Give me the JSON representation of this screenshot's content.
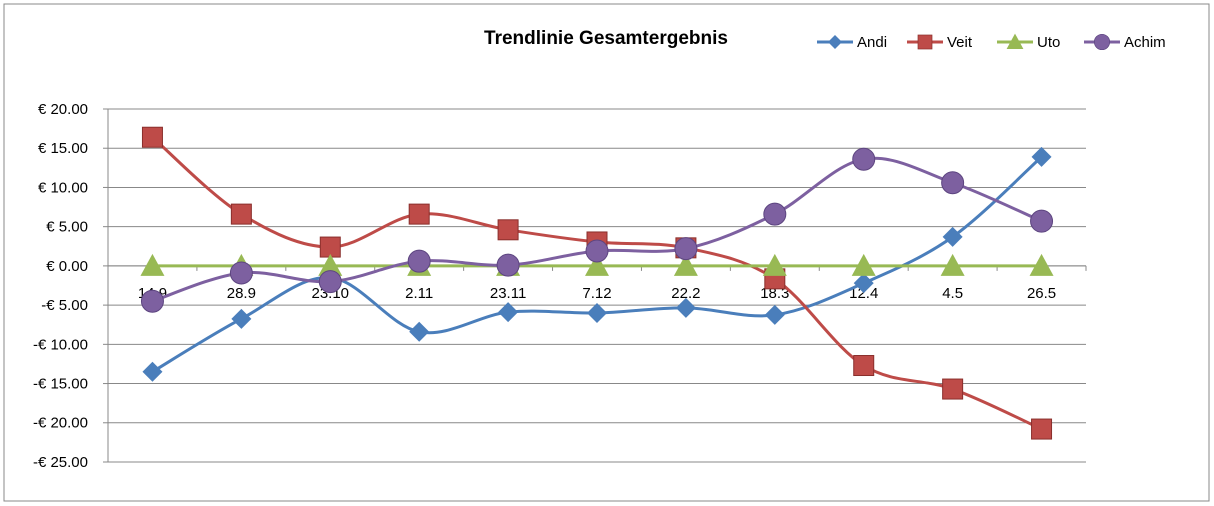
{
  "chart_data": {
    "type": "line",
    "title": "Trendlinie Gesamtergebnis",
    "categories": [
      "14.9",
      "28.9",
      "23.10",
      "2.11",
      "23.11",
      "7.12",
      "22.2",
      "18.3",
      "12.4",
      "4.5",
      "26.5"
    ],
    "series": [
      {
        "name": "Andi",
        "color": "#4a7ebb",
        "marker": "diamond",
        "values": [
          -13.5,
          -6.75,
          -1.5,
          -8.4,
          -5.9,
          -6.0,
          -5.35,
          -6.25,
          -2.2,
          3.7,
          13.9
        ]
      },
      {
        "name": "Veit",
        "color": "#be4b48",
        "marker": "square",
        "values": [
          16.4,
          6.6,
          2.4,
          6.6,
          4.6,
          3.05,
          2.3,
          -1.65,
          -12.7,
          -15.7,
          -20.8
        ]
      },
      {
        "name": "Uto",
        "color": "#98b954",
        "marker": "triangle",
        "values": [
          0,
          0,
          0,
          0,
          0,
          0,
          0,
          0,
          0,
          0,
          0
        ]
      },
      {
        "name": "Achim",
        "color": "#7d60a0",
        "marker": "circle",
        "values": [
          -4.5,
          -0.9,
          -2.0,
          0.6,
          0.1,
          1.9,
          2.2,
          6.6,
          13.6,
          10.6,
          5.7
        ]
      }
    ],
    "ylim": [
      -25,
      20
    ],
    "yticks": [
      {
        "value": -25,
        "label": "-€ 25.00"
      },
      {
        "value": -20,
        "label": "-€ 20.00"
      },
      {
        "value": -15,
        "label": "-€ 15.00"
      },
      {
        "value": -10,
        "label": "-€ 10.00"
      },
      {
        "value": -5,
        "label": "-€ 5.00"
      },
      {
        "value": 0,
        "label": "€ 0.00"
      },
      {
        "value": 5,
        "label": "€ 5.00"
      },
      {
        "value": 10,
        "label": "€ 10.00"
      },
      {
        "value": 15,
        "label": "€ 15.00"
      },
      {
        "value": 20,
        "label": "€ 20.00"
      }
    ],
    "grid": true,
    "smooth": true,
    "legend": "top-right"
  }
}
